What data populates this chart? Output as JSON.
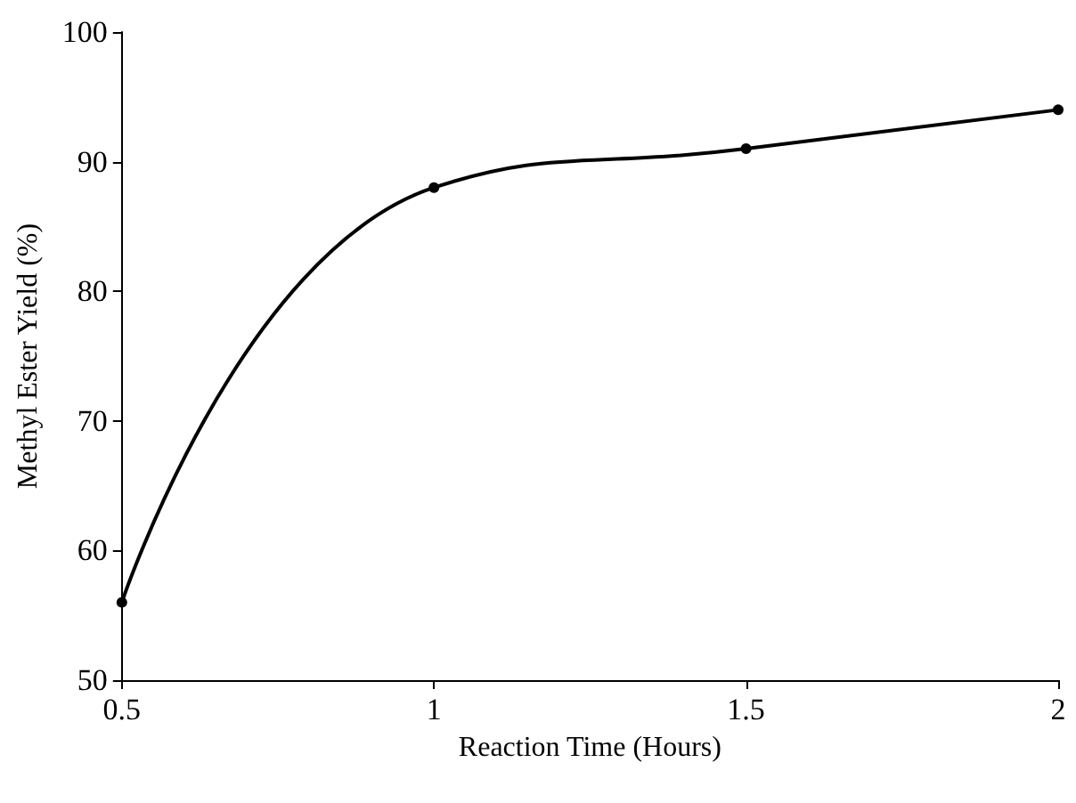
{
  "chart_data": {
    "type": "line",
    "xlabel": "Reaction Time (Hours)",
    "ylabel": "Methyl Ester Yield (%)",
    "x": [
      0.5,
      1,
      1.5,
      2
    ],
    "series": [
      {
        "color": "#000000",
        "values": [
          56,
          88,
          91,
          94
        ]
      }
    ],
    "xlim": [
      0.5,
      2
    ],
    "xticks": [
      0.5,
      1,
      1.5,
      2
    ],
    "ylim": [
      50,
      100
    ],
    "yticks": [
      50,
      60,
      70,
      80,
      90,
      100
    ],
    "grid": false,
    "marker": "circle",
    "line_style": "solid"
  }
}
